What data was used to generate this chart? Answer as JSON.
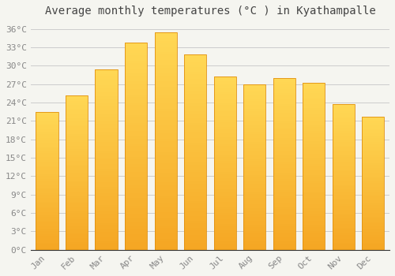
{
  "title": "Average monthly temperatures (°C ) in Kyathampalle",
  "months": [
    "Jan",
    "Feb",
    "Mar",
    "Apr",
    "May",
    "Jun",
    "Jul",
    "Aug",
    "Sep",
    "Oct",
    "Nov",
    "Dec"
  ],
  "values": [
    22.5,
    25.2,
    29.4,
    33.8,
    35.4,
    31.8,
    28.2,
    27.0,
    28.0,
    27.2,
    23.8,
    21.7
  ],
  "bar_color_bottom": "#F5A623",
  "bar_color_top": "#FFD040",
  "bar_edge_color": "#E09010",
  "background_color": "#F5F5F0",
  "plot_bg_color": "#F5F5F0",
  "grid_color": "#CCCCCC",
  "text_color": "#888888",
  "title_color": "#444444",
  "axis_color": "#333333",
  "ylim": [
    0,
    37
  ],
  "yticks": [
    0,
    3,
    6,
    9,
    12,
    15,
    18,
    21,
    24,
    27,
    30,
    33,
    36
  ],
  "ytick_labels": [
    "0°C",
    "3°C",
    "6°C",
    "9°C",
    "12°C",
    "15°C",
    "18°C",
    "21°C",
    "24°C",
    "27°C",
    "30°C",
    "33°C",
    "36°C"
  ],
  "title_fontsize": 10,
  "tick_fontsize": 8,
  "bar_width": 0.75,
  "figsize": [
    5.0,
    3.5
  ],
  "dpi": 100
}
